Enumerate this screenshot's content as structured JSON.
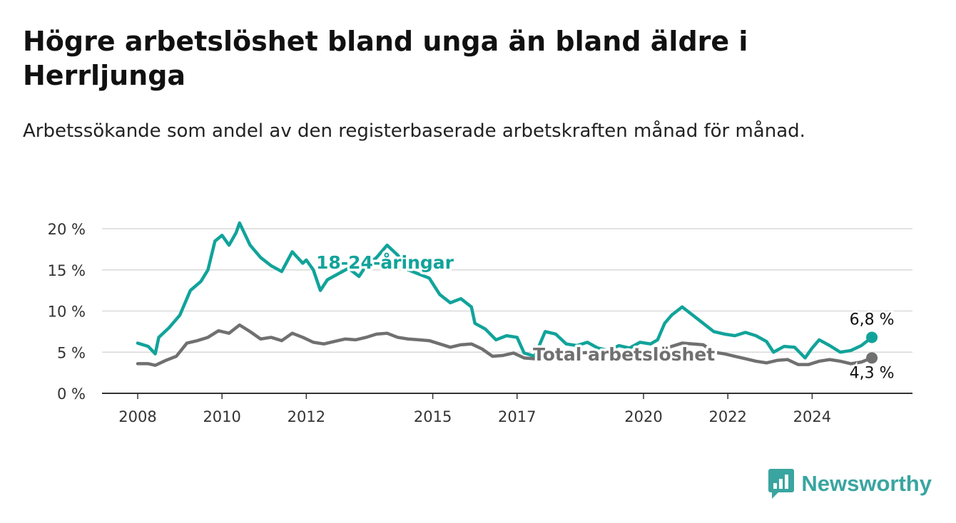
{
  "title": "Högre arbetslöshet bland unga än bland äldre i Herrljunga",
  "subtitle": "Arbetssökande som andel av den registerbaserade arbetskraften månad för månad.",
  "brand": {
    "name": "Newsworthy",
    "icon": "bar-chart-logo-icon",
    "color": "#3aa5a0"
  },
  "chart_data": {
    "type": "line",
    "x_ticks": [
      "2008",
      "2010",
      "2012",
      "2015",
      "2017",
      "2020",
      "2022",
      "2024"
    ],
    "y_ticks": [
      "0 %",
      "5 %",
      "10 %",
      "15 %",
      "20 %"
    ],
    "ylim": [
      0,
      20
    ],
    "grid": "horizontal",
    "series": [
      {
        "name": "18-24-åringar",
        "color": "#11a39a",
        "end_label": "6,8 %",
        "points": [
          [
            "2008-01",
            6.1
          ],
          [
            "2008-04",
            5.7
          ],
          [
            "2008-06",
            4.8
          ],
          [
            "2008-07",
            6.8
          ],
          [
            "2008-10",
            8.0
          ],
          [
            "2009-01",
            9.5
          ],
          [
            "2009-04",
            12.5
          ],
          [
            "2009-07",
            13.6
          ],
          [
            "2009-09",
            15.0
          ],
          [
            "2009-11",
            18.5
          ],
          [
            "2010-01",
            19.2
          ],
          [
            "2010-03",
            18.0
          ],
          [
            "2010-05",
            19.5
          ],
          [
            "2010-06",
            20.7
          ],
          [
            "2010-09",
            18.0
          ],
          [
            "2010-12",
            16.5
          ],
          [
            "2011-03",
            15.5
          ],
          [
            "2011-06",
            14.8
          ],
          [
            "2011-09",
            17.2
          ],
          [
            "2011-12",
            15.8
          ],
          [
            "2012-01",
            16.2
          ],
          [
            "2012-03",
            15.0
          ],
          [
            "2012-05",
            12.5
          ],
          [
            "2012-07",
            13.8
          ],
          [
            "2012-10",
            14.5
          ],
          [
            "2013-01",
            15.2
          ],
          [
            "2013-04",
            14.2
          ],
          [
            "2013-06",
            15.5
          ],
          [
            "2013-09",
            16.5
          ],
          [
            "2013-12",
            18.0
          ],
          [
            "2014-03",
            16.8
          ],
          [
            "2014-06",
            15.0
          ],
          [
            "2014-09",
            14.5
          ],
          [
            "2014-12",
            14.0
          ],
          [
            "2015-03",
            12.0
          ],
          [
            "2015-06",
            11.0
          ],
          [
            "2015-09",
            11.5
          ],
          [
            "2015-12",
            10.5
          ],
          [
            "2016-01",
            8.5
          ],
          [
            "2016-04",
            7.8
          ],
          [
            "2016-07",
            6.5
          ],
          [
            "2016-10",
            7.0
          ],
          [
            "2017-01",
            6.8
          ],
          [
            "2017-03",
            4.9
          ],
          [
            "2017-06",
            4.5
          ],
          [
            "2017-09",
            7.5
          ],
          [
            "2017-12",
            7.2
          ],
          [
            "2018-03",
            6.0
          ],
          [
            "2018-06",
            5.8
          ],
          [
            "2018-09",
            6.2
          ],
          [
            "2018-12",
            5.5
          ],
          [
            "2019-03",
            5.2
          ],
          [
            "2019-06",
            5.8
          ],
          [
            "2019-09",
            5.5
          ],
          [
            "2019-12",
            6.2
          ],
          [
            "2020-03",
            6.0
          ],
          [
            "2020-05",
            6.5
          ],
          [
            "2020-07",
            8.5
          ],
          [
            "2020-09",
            9.5
          ],
          [
            "2020-12",
            10.5
          ],
          [
            "2021-03",
            9.5
          ],
          [
            "2021-06",
            8.5
          ],
          [
            "2021-09",
            7.5
          ],
          [
            "2021-12",
            7.2
          ],
          [
            "2022-03",
            7.0
          ],
          [
            "2022-06",
            7.4
          ],
          [
            "2022-09",
            7.0
          ],
          [
            "2022-12",
            6.3
          ],
          [
            "2023-02",
            5.0
          ],
          [
            "2023-05",
            5.7
          ],
          [
            "2023-08",
            5.6
          ],
          [
            "2023-11",
            4.3
          ],
          [
            "2024-01",
            5.5
          ],
          [
            "2024-03",
            6.5
          ],
          [
            "2024-06",
            5.8
          ],
          [
            "2024-09",
            5.0
          ],
          [
            "2024-12",
            5.2
          ],
          [
            "2025-03",
            5.8
          ],
          [
            "2025-06",
            6.8
          ]
        ]
      },
      {
        "name": "Total arbetslöshet",
        "color": "#707070",
        "end_label": "4,3 %",
        "points": [
          [
            "2008-01",
            3.6
          ],
          [
            "2008-04",
            3.6
          ],
          [
            "2008-06",
            3.4
          ],
          [
            "2008-09",
            4.0
          ],
          [
            "2008-12",
            4.5
          ],
          [
            "2009-03",
            6.1
          ],
          [
            "2009-06",
            6.4
          ],
          [
            "2009-09",
            6.8
          ],
          [
            "2009-12",
            7.6
          ],
          [
            "2010-03",
            7.3
          ],
          [
            "2010-06",
            8.3
          ],
          [
            "2010-09",
            7.5
          ],
          [
            "2010-12",
            6.6
          ],
          [
            "2011-03",
            6.8
          ],
          [
            "2011-06",
            6.4
          ],
          [
            "2011-09",
            7.3
          ],
          [
            "2011-12",
            6.8
          ],
          [
            "2012-03",
            6.2
          ],
          [
            "2012-06",
            6.0
          ],
          [
            "2012-09",
            6.3
          ],
          [
            "2012-12",
            6.6
          ],
          [
            "2013-03",
            6.5
          ],
          [
            "2013-06",
            6.8
          ],
          [
            "2013-09",
            7.2
          ],
          [
            "2013-12",
            7.3
          ],
          [
            "2014-03",
            6.8
          ],
          [
            "2014-06",
            6.6
          ],
          [
            "2014-09",
            6.5
          ],
          [
            "2014-12",
            6.4
          ],
          [
            "2015-03",
            6.0
          ],
          [
            "2015-06",
            5.6
          ],
          [
            "2015-09",
            5.9
          ],
          [
            "2015-12",
            6.0
          ],
          [
            "2016-03",
            5.4
          ],
          [
            "2016-06",
            4.5
          ],
          [
            "2016-09",
            4.6
          ],
          [
            "2016-12",
            4.9
          ],
          [
            "2017-03",
            4.3
          ],
          [
            "2017-06",
            4.2
          ],
          [
            "2017-09",
            4.5
          ],
          [
            "2017-12",
            4.6
          ],
          [
            "2018-06",
            4.9
          ],
          [
            "2018-12",
            5.0
          ],
          [
            "2019-06",
            4.8
          ],
          [
            "2019-12",
            5.0
          ],
          [
            "2020-06",
            5.3
          ],
          [
            "2020-12",
            6.1
          ],
          [
            "2021-06",
            5.9
          ],
          [
            "2021-09",
            5.0
          ],
          [
            "2021-12",
            4.8
          ],
          [
            "2022-03",
            4.5
          ],
          [
            "2022-06",
            4.2
          ],
          [
            "2022-09",
            3.9
          ],
          [
            "2022-12",
            3.7
          ],
          [
            "2023-03",
            4.0
          ],
          [
            "2023-06",
            4.1
          ],
          [
            "2023-09",
            3.5
          ],
          [
            "2023-12",
            3.5
          ],
          [
            "2024-03",
            3.9
          ],
          [
            "2024-06",
            4.1
          ],
          [
            "2024-09",
            3.9
          ],
          [
            "2024-12",
            3.6
          ],
          [
            "2025-03",
            3.8
          ],
          [
            "2025-06",
            4.3
          ]
        ]
      }
    ]
  }
}
